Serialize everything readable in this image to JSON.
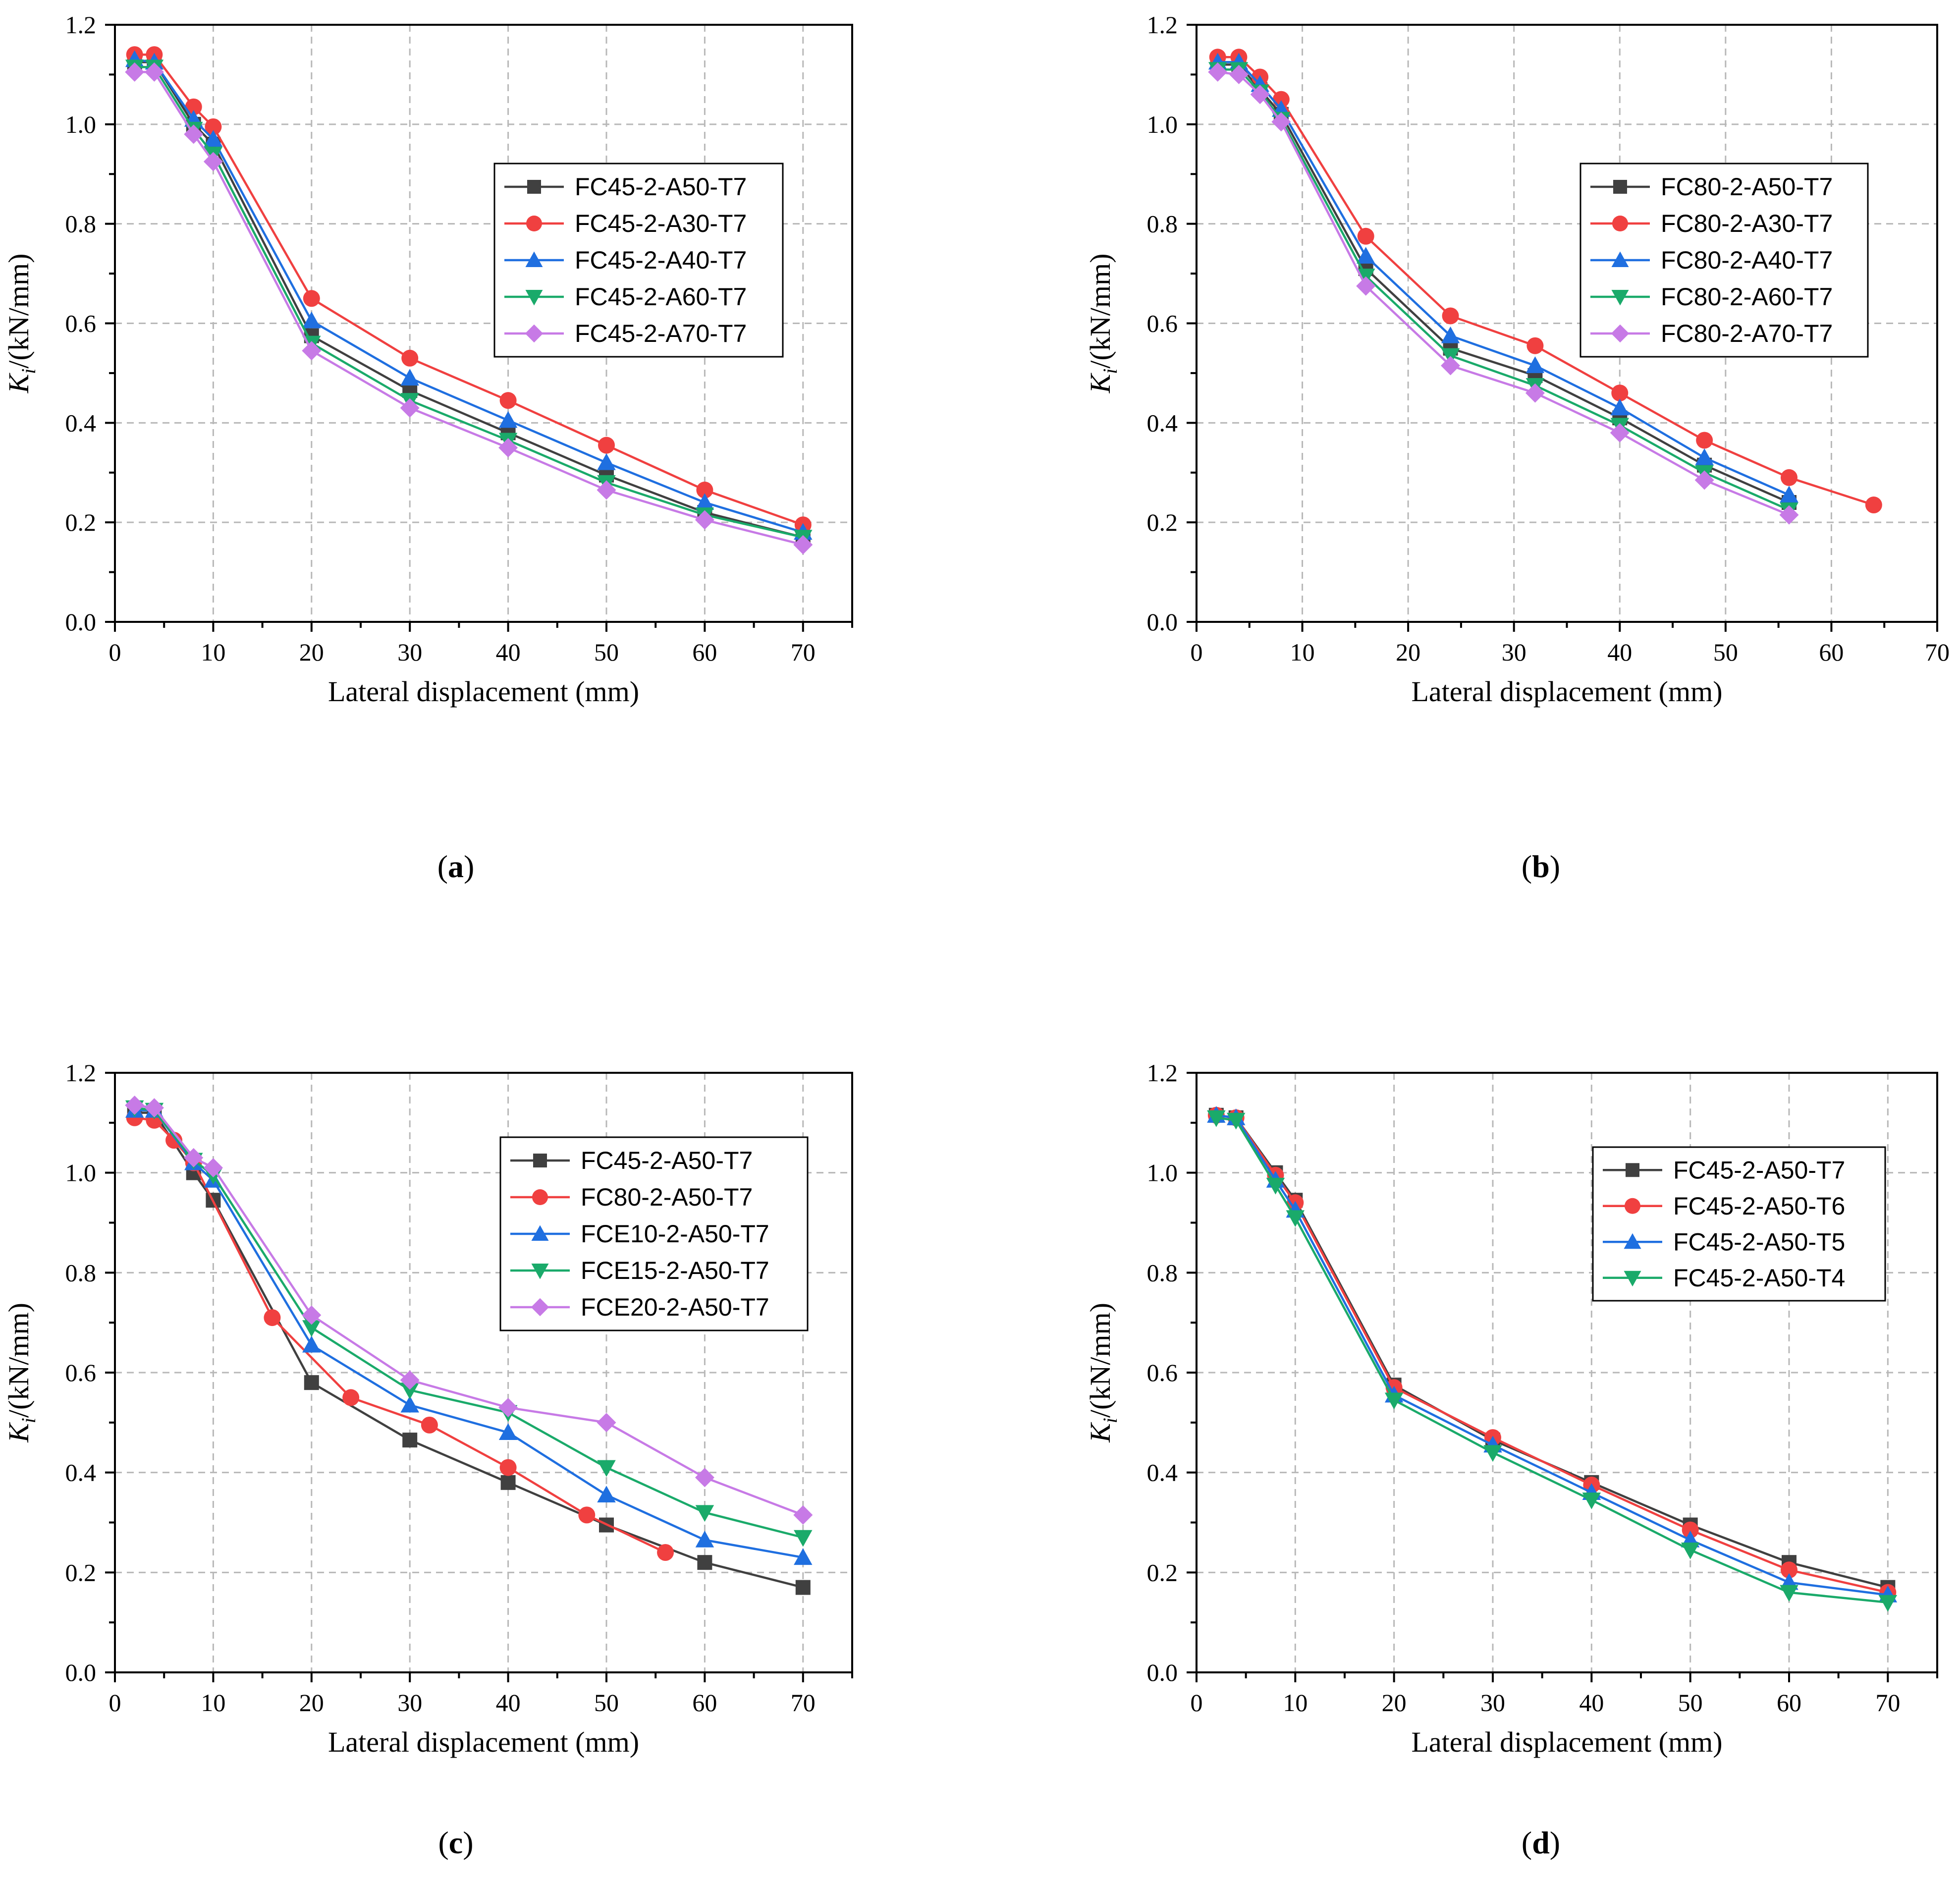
{
  "chart_data": [
    {
      "type": "line",
      "panel_label": "a",
      "xlabel": "Lateral displacement (mm)",
      "ylabel": {
        "symbol": "K",
        "subscript": "i",
        "unit": "/(kN/mm)"
      },
      "xlim": [
        0,
        75
      ],
      "ylim": [
        0,
        1.2
      ],
      "xticks": [
        0,
        10,
        20,
        30,
        40,
        50,
        60,
        70
      ],
      "yticks": [
        0.0,
        0.2,
        0.4,
        0.6,
        0.8,
        1.0,
        1.2
      ],
      "grid": true,
      "legend_position": "right",
      "series": [
        {
          "name": "FC45-2-A50-T7",
          "color": "#404040",
          "marker": "square",
          "x": [
            2,
            4,
            8,
            10,
            20,
            30,
            40,
            50,
            60,
            70
          ],
          "y": [
            1.125,
            1.125,
            1.0,
            0.96,
            0.575,
            0.465,
            0.38,
            0.295,
            0.22,
            0.17
          ]
        },
        {
          "name": "FC45-2-A30-T7",
          "color": "#f04040",
          "marker": "circle",
          "x": [
            2,
            4,
            8,
            10,
            20,
            30,
            40,
            50,
            60,
            70
          ],
          "y": [
            1.14,
            1.14,
            1.035,
            0.995,
            0.65,
            0.53,
            0.445,
            0.355,
            0.265,
            0.195
          ]
        },
        {
          "name": "FC45-2-A40-T7",
          "color": "#1f6fe0",
          "marker": "triangle-up",
          "x": [
            2,
            4,
            8,
            10,
            20,
            30,
            40,
            50,
            60,
            70
          ],
          "y": [
            1.13,
            1.125,
            1.01,
            0.97,
            0.605,
            0.49,
            0.405,
            0.32,
            0.24,
            0.18
          ]
        },
        {
          "name": "FC45-2-A60-T7",
          "color": "#1aaa6a",
          "marker": "triangle-down",
          "x": [
            2,
            4,
            8,
            10,
            20,
            30,
            40,
            50,
            60,
            70
          ],
          "y": [
            1.115,
            1.115,
            0.99,
            0.94,
            0.56,
            0.445,
            0.365,
            0.28,
            0.215,
            0.17
          ]
        },
        {
          "name": "FC45-2-A70-T7",
          "color": "#c77ae6",
          "marker": "diamond",
          "x": [
            2,
            4,
            8,
            10,
            20,
            30,
            40,
            50,
            60,
            70
          ],
          "y": [
            1.105,
            1.105,
            0.98,
            0.925,
            0.545,
            0.43,
            0.35,
            0.265,
            0.205,
            0.155
          ]
        }
      ]
    },
    {
      "type": "line",
      "panel_label": "b",
      "xlabel": "Lateral displacement (mm)",
      "ylabel": {
        "symbol": "K",
        "subscript": "i",
        "unit": "/(kN/mm)"
      },
      "xlim": [
        0,
        70
      ],
      "ylim": [
        0,
        1.2
      ],
      "xticks": [
        0,
        10,
        20,
        30,
        40,
        50,
        60,
        70
      ],
      "yticks": [
        0.0,
        0.2,
        0.4,
        0.6,
        0.8,
        1.0,
        1.2
      ],
      "grid": true,
      "legend_position": "right",
      "series": [
        {
          "name": "FC80-2-A50-T7",
          "color": "#404040",
          "marker": "square",
          "x": [
            2,
            4,
            6,
            8,
            16,
            24,
            32,
            40,
            48,
            56
          ],
          "y": [
            1.12,
            1.12,
            1.07,
            1.02,
            0.71,
            0.55,
            0.495,
            0.41,
            0.315,
            0.24
          ]
        },
        {
          "name": "FC80-2-A30-T7",
          "color": "#f04040",
          "marker": "circle",
          "x": [
            2,
            4,
            6,
            8,
            16,
            24,
            32,
            40,
            48,
            56,
            64
          ],
          "y": [
            1.135,
            1.135,
            1.095,
            1.05,
            0.775,
            0.615,
            0.555,
            0.46,
            0.365,
            0.29,
            0.235
          ]
        },
        {
          "name": "FC80-2-A40-T7",
          "color": "#1f6fe0",
          "marker": "triangle-up",
          "x": [
            2,
            4,
            6,
            8,
            16,
            24,
            32,
            40,
            48,
            56
          ],
          "y": [
            1.125,
            1.125,
            1.08,
            1.03,
            0.735,
            0.575,
            0.515,
            0.43,
            0.33,
            0.255
          ]
        },
        {
          "name": "FC80-2-A60-T7",
          "color": "#1aaa6a",
          "marker": "triangle-down",
          "x": [
            2,
            4,
            6,
            8,
            16,
            24,
            32,
            40,
            48,
            56
          ],
          "y": [
            1.11,
            1.11,
            1.065,
            1.01,
            0.695,
            0.535,
            0.475,
            0.395,
            0.3,
            0.225
          ]
        },
        {
          "name": "FC80-2-A70-T7",
          "color": "#c77ae6",
          "marker": "diamond",
          "x": [
            2,
            4,
            6,
            8,
            16,
            24,
            32,
            40,
            48,
            56
          ],
          "y": [
            1.105,
            1.1,
            1.06,
            1.005,
            0.675,
            0.515,
            0.46,
            0.38,
            0.285,
            0.215
          ]
        }
      ]
    },
    {
      "type": "line",
      "panel_label": "c",
      "xlabel": "Lateral displacement (mm)",
      "ylabel": {
        "symbol": "K",
        "subscript": "i",
        "unit": "/(kN/mm)"
      },
      "xlim": [
        0,
        75
      ],
      "ylim": [
        0,
        1.2
      ],
      "xticks": [
        0,
        10,
        20,
        30,
        40,
        50,
        60,
        70
      ],
      "yticks": [
        0.0,
        0.2,
        0.4,
        0.6,
        0.8,
        1.0,
        1.2
      ],
      "grid": true,
      "legend_position": "right",
      "series": [
        {
          "name": "FC45-2-A50-T7",
          "color": "#404040",
          "marker": "square",
          "x": [
            2,
            4,
            8,
            10,
            20,
            30,
            40,
            50,
            60,
            70
          ],
          "y": [
            1.12,
            1.12,
            1.0,
            0.945,
            0.58,
            0.465,
            0.38,
            0.295,
            0.22,
            0.17
          ]
        },
        {
          "name": "FC80-2-A50-T7",
          "color": "#f04040",
          "marker": "circle",
          "x": [
            2,
            4,
            6,
            8,
            16,
            24,
            32,
            40,
            48,
            56
          ],
          "y": [
            1.11,
            1.105,
            1.065,
            1.02,
            0.71,
            0.55,
            0.495,
            0.41,
            0.315,
            0.24
          ]
        },
        {
          "name": "FCE10-2-A50-T7",
          "color": "#1f6fe0",
          "marker": "triangle-up",
          "x": [
            2,
            4,
            8,
            10,
            20,
            30,
            40,
            50,
            60,
            70
          ],
          "y": [
            1.125,
            1.125,
            1.02,
            0.985,
            0.655,
            0.535,
            0.48,
            0.355,
            0.265,
            0.23
          ]
        },
        {
          "name": "FCE15-2-A50-T7",
          "color": "#1aaa6a",
          "marker": "triangle-down",
          "x": [
            2,
            4,
            8,
            10,
            20,
            30,
            40,
            50,
            60,
            70
          ],
          "y": [
            1.13,
            1.125,
            1.025,
            0.995,
            0.69,
            0.565,
            0.52,
            0.41,
            0.32,
            0.27
          ]
        },
        {
          "name": "FCE20-2-A50-T7",
          "color": "#c77ae6",
          "marker": "diamond",
          "x": [
            2,
            4,
            8,
            10,
            20,
            30,
            40,
            50,
            60,
            70
          ],
          "y": [
            1.135,
            1.13,
            1.03,
            1.01,
            0.715,
            0.585,
            0.53,
            0.5,
            0.39,
            0.315
          ]
        }
      ]
    },
    {
      "type": "line",
      "panel_label": "d",
      "xlabel": "Lateral displacement (mm)",
      "ylabel": {
        "symbol": "K",
        "subscript": "i",
        "unit": "/(kN/mm)"
      },
      "xlim": [
        0,
        75
      ],
      "ylim": [
        0,
        1.2
      ],
      "xticks": [
        0,
        10,
        20,
        30,
        40,
        50,
        60,
        70
      ],
      "yticks": [
        0.0,
        0.2,
        0.4,
        0.6,
        0.8,
        1.0,
        1.2
      ],
      "grid": true,
      "legend_position": "right",
      "series": [
        {
          "name": "FC45-2-A50-T7",
          "color": "#404040",
          "marker": "square",
          "x": [
            2,
            4,
            8,
            10,
            20,
            30,
            40,
            50,
            60,
            70
          ],
          "y": [
            1.115,
            1.11,
            1.0,
            0.945,
            0.575,
            0.465,
            0.38,
            0.295,
            0.22,
            0.17
          ]
        },
        {
          "name": "FC45-2-A50-T6",
          "color": "#f04040",
          "marker": "circle",
          "x": [
            2,
            4,
            8,
            10,
            20,
            30,
            40,
            50,
            60,
            70
          ],
          "y": [
            1.115,
            1.11,
            0.995,
            0.94,
            0.57,
            0.47,
            0.375,
            0.285,
            0.205,
            0.16
          ]
        },
        {
          "name": "FC45-2-A50-T5",
          "color": "#1f6fe0",
          "marker": "triangle-up",
          "x": [
            2,
            4,
            8,
            10,
            20,
            30,
            40,
            50,
            60,
            70
          ],
          "y": [
            1.115,
            1.11,
            0.985,
            0.925,
            0.555,
            0.455,
            0.36,
            0.265,
            0.18,
            0.155
          ]
        },
        {
          "name": "FC45-2-A50-T4",
          "color": "#1aaa6a",
          "marker": "triangle-down",
          "x": [
            2,
            4,
            8,
            10,
            20,
            30,
            40,
            50,
            60,
            70
          ],
          "y": [
            1.11,
            1.105,
            0.975,
            0.91,
            0.545,
            0.44,
            0.345,
            0.245,
            0.16,
            0.14
          ]
        }
      ]
    }
  ]
}
